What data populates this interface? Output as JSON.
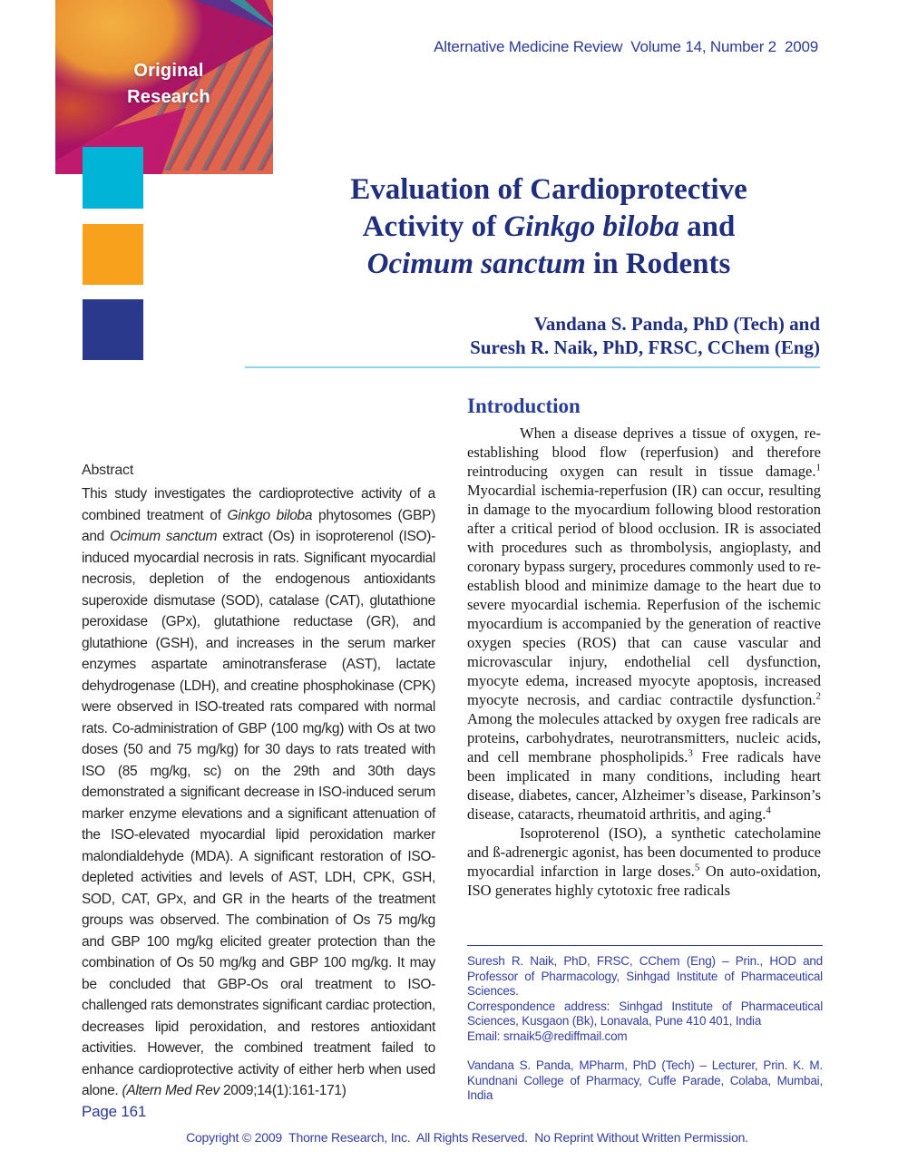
{
  "page": {
    "journal_header": "Alternative Medicine Review  Volume 14, Number 2  2009",
    "page_number": "Page 161",
    "copyright": "Copyright © 2009  Thorne Research, Inc.  All Rights Reserved.  No Reprint Without Written Permission."
  },
  "badge": {
    "line1": "Original",
    "line2": "Research"
  },
  "title": {
    "line1": "Evaluation of Cardioprotective",
    "line2_pre": "Activity of ",
    "line2_em": "Ginkgo biloba",
    "line2_post": " and",
    "line3_em": "Ocimum sanctum",
    "line3_post": " in Rodents"
  },
  "authors": {
    "line1": "Vandana S. Panda, PhD (Tech) and",
    "line2": "Suresh R. Naik, PhD, FRSC, CChem (Eng)"
  },
  "abstract": {
    "heading": "Abstract",
    "s1": "This study investigates the cardioprotective activity of a combined treatment of ",
    "em1": "Ginkgo biloba",
    "s2": " phytosomes (GBP) and ",
    "em2": "Ocimum sanctum",
    "s3": " extract (Os) in isoproterenol (ISO)-induced myocardial necrosis in rats. Significant myocardial necrosis, depletion of the endogenous antioxidants superoxide dismutase (SOD), catalase (CAT), glutathione peroxidase (GPx), glutathione reductase (GR), and glutathione (GSH), and increases in the serum marker enzymes aspartate aminotransferase (AST), lactate dehydrogenase (LDH), and creatine phosphokinase (CPK) were observed in ISO-treated rats compared with normal rats. Co-administration of GBP (100 mg/kg) with Os at two doses (50 and 75 mg/kg) for 30 days to rats treated with ISO (85 mg/kg, sc) on the 29th and 30th days demonstrated a significant decrease in ISO-induced serum marker enzyme elevations and a significant attenuation of the ISO-elevated myocardial lipid peroxidation marker malondialdehyde (MDA). A significant restoration of ISO-depleted activities and levels of AST, LDH, CPK, GSH, SOD, CAT, GPx, and GR in the hearts of the treatment groups was observed. The combination of Os 75 mg/kg and GBP 100 mg/kg elicited greater protection than the combination of Os 50 mg/kg and GBP 100 mg/kg. It may be concluded that GBP-Os oral treatment to ISO-challenged rats demonstrates significant cardiac protection, decreases lipid peroxidation, and restores antioxidant activities. However, the combined treatment failed to enhance cardioprotective activity of either herb when used alone. ",
    "em3": "(Altern Med Rev",
    "s4": " 2009;14(1):161-171)"
  },
  "introduction": {
    "heading": "Introduction",
    "p1": {
      "s1": "When a disease deprives a tissue of oxygen, re-establishing blood flow (reperfusion) and therefore reintroducing oxygen can result in tissue damage.",
      "sup1": "1",
      "s2": " Myocardial ischemia-reperfusion (IR) can occur, resulting in damage to the myocardium following blood restoration after a critical period of blood occlusion. IR is associated with procedures such as thrombolysis, angioplasty, and coronary bypass surgery, procedures commonly used to re-establish blood and minimize damage to the heart due to severe myocardial ischemia. Reperfusion of the ischemic myocardium is accompanied by the generation of reactive oxygen species (ROS) that can cause vascular and microvascular injury, endothelial cell dysfunction, myocyte edema, increased myocyte apoptosis, increased myocyte necrosis, and cardiac contractile dysfunction.",
      "sup2": "2",
      "s3": " Among the molecules attacked by oxygen free radicals are proteins, carbohydrates, neurotransmitters, nucleic acids, and cell membrane phospholipids.",
      "sup3": "3",
      "s4": " Free radicals have been implicated in many conditions, including heart disease, diabetes, cancer, Alzheimer’s disease, Parkinson’s disease, cataracts, rheumatoid arthritis, and aging.",
      "sup4": "4"
    },
    "p2": {
      "s1": "Isoproterenol (ISO), a synthetic catecholamine and ß-adrenergic agonist, has been documented to produce myocardial infarction in large doses.",
      "sup1": "5",
      "s2": " On auto-oxidation, ISO generates highly cytotoxic free radicals"
    }
  },
  "footnote": {
    "naik": "Suresh R. Naik, PhD, FRSC, CChem (Eng) –  Prin., HOD and Professor of Pharmacology, Sinhgad Institute of Pharmaceutical Sciences.",
    "correspondence": "Correspondence address: Sinhgad Institute of Pharmaceutical Sciences, Kusgaon (Bk), Lonavala, Pune 410 401, India",
    "email": "Email: srnaik5@rediffmail.com",
    "panda": "Vandana S. Panda, MPharm, PhD (Tech) –  Lecturer, Prin. K. M. Kundnani College of Pharmacy, Cuffe Parade, Colaba, Mumbai, India"
  },
  "colors": {
    "title_navy": "#1f2e7d",
    "heading_blue": "#2a3f96",
    "meta_blue": "#2b3a94",
    "cyan_square": "#00b4d8",
    "orange_square": "#f8a11d",
    "navy_square": "#2b398c",
    "divider_cyan": "#8ed7e9"
  }
}
